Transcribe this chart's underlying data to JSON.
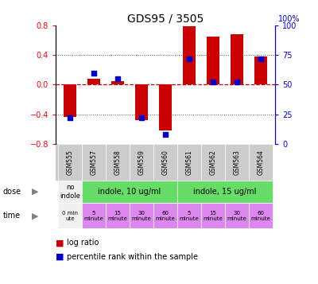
{
  "title": "GDS95 / 3505",
  "samples": [
    "GSM555",
    "GSM557",
    "GSM558",
    "GSM559",
    "GSM560",
    "GSM561",
    "GSM562",
    "GSM563",
    "GSM564"
  ],
  "log_ratio": [
    -0.44,
    0.08,
    0.05,
    -0.48,
    -0.62,
    0.79,
    0.65,
    0.68,
    0.38
  ],
  "percentile": [
    22,
    60,
    55,
    22,
    8,
    72,
    52,
    52,
    72
  ],
  "ylim": [
    -0.8,
    0.8
  ],
  "percentile_ylim": [
    0,
    100
  ],
  "yticks_left": [
    -0.8,
    -0.4,
    0.0,
    0.4,
    0.8
  ],
  "yticks_right": [
    0,
    25,
    50,
    75,
    100
  ],
  "bar_color": "#cc0000",
  "dot_color": "#0000cc",
  "zero_line_color": "#cc0000",
  "dotted_line_color": "#555555",
  "gsm_label_bg": "#cccccc",
  "dose_no_indole_color": "#f0f0f0",
  "dose_indole_color": "#66dd66",
  "time_zero_color": "#f0f0f0",
  "time_other_color": "#dd88ee",
  "background_color": "#ffffff",
  "dose_spans": [
    [
      0,
      1,
      "no\nindole"
    ],
    [
      1,
      5,
      "indole, 10 ug/ml"
    ],
    [
      5,
      9,
      "indole, 15 ug/ml"
    ]
  ],
  "dose_colors": [
    "#f0f0f0",
    "#66dd66",
    "#66dd66"
  ],
  "time_labels": [
    "0 min\nute",
    "5\nminute",
    "15\nminute",
    "30\nminute",
    "60\nminute",
    "5\nminute",
    "15\nminute",
    "30\nminute",
    "60\nminute"
  ],
  "time_colors": [
    "#f0f0f0",
    "#dd88ee",
    "#dd88ee",
    "#dd88ee",
    "#dd88ee",
    "#dd88ee",
    "#dd88ee",
    "#dd88ee",
    "#dd88ee"
  ]
}
